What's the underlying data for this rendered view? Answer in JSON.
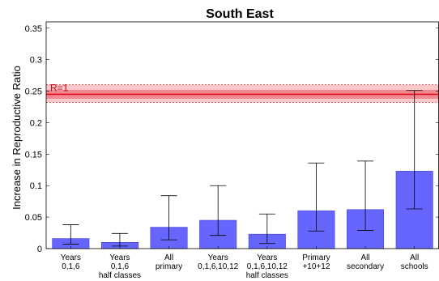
{
  "chart_data": {
    "type": "bar",
    "title": "South East",
    "xlabel": "",
    "ylabel": "Increase in Reproductive Ratio",
    "ylim": [
      0,
      0.36
    ],
    "yticks": [
      "0",
      "0.05",
      "0.1",
      "0.15",
      "0.2",
      "0.25",
      "0.3",
      "0.35"
    ],
    "ytick_values": [
      0,
      0.05,
      0.1,
      0.15,
      0.2,
      0.25,
      0.3,
      0.35
    ],
    "categories": [
      [
        "Years",
        "0,1,6"
      ],
      [
        "Years",
        "0,1,6",
        "half classes"
      ],
      [
        "All",
        "primary"
      ],
      [
        "Years",
        "0,1,6,10,12"
      ],
      [
        "Years",
        "0,1,6,10,12",
        "half classes"
      ],
      [
        "Primary",
        "+10+12"
      ],
      [
        "All",
        "secondary"
      ],
      [
        "All",
        "schools"
      ]
    ],
    "values": [
      0.016,
      0.01,
      0.034,
      0.045,
      0.023,
      0.06,
      0.062,
      0.123
    ],
    "error_low": [
      0.007,
      0.004,
      0.014,
      0.021,
      0.008,
      0.028,
      0.029,
      0.063
    ],
    "error_high": [
      0.038,
      0.024,
      0.084,
      0.1,
      0.055,
      0.136,
      0.139,
      0.251
    ],
    "reference_line": {
      "label": "R=1",
      "value": 0.245,
      "band_inner": [
        0.238,
        0.252
      ],
      "band_outer": [
        0.232,
        0.26
      ]
    },
    "colors": {
      "bar": "#6666ff",
      "bar_edge": "#3333cc",
      "ref_line": "#e0101a",
      "ref_band_inner": "#f28890",
      "ref_band_outer": "#fbc8cc",
      "ref_label": "#cc0010"
    },
    "grid": false,
    "legend": "none"
  }
}
